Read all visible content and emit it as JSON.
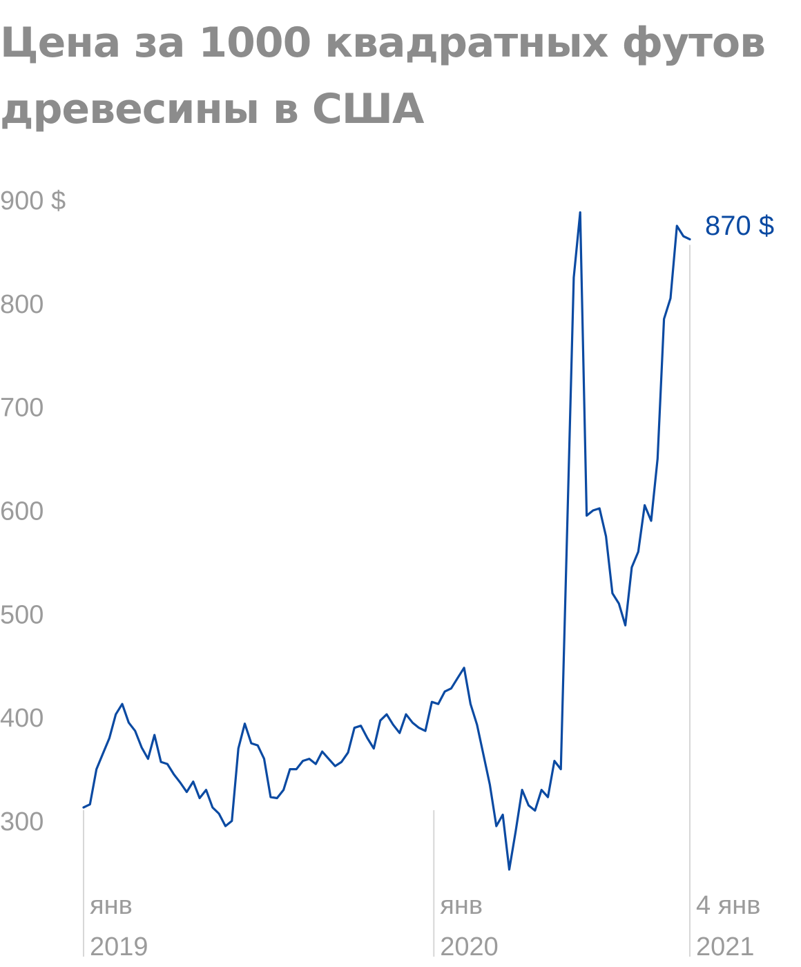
{
  "title_lines": [
    "Цена за 1000 квадратных футов",
    "древесины в США"
  ],
  "colors": {
    "title": "#8c8c8c",
    "axis_text": "#9b9b9b",
    "series": "#0b4aa2",
    "gridline": "#d7d7d7"
  },
  "chart_data": {
    "type": "line",
    "title": "Цена за 1000 квадратных футов древесины в США",
    "xlabel": "",
    "ylabel": "",
    "ylim": [
      250,
      900
    ],
    "y_ticks": [
      {
        "value": 900,
        "label": "900 $"
      },
      {
        "value": 800,
        "label": "800"
      },
      {
        "value": 700,
        "label": "700"
      },
      {
        "value": 600,
        "label": "600"
      },
      {
        "value": 500,
        "label": "500"
      },
      {
        "value": 400,
        "label": "400"
      },
      {
        "value": 300,
        "label": "300"
      }
    ],
    "x_ticks": [
      {
        "week": 0,
        "line1": "янв",
        "line2": "2019"
      },
      {
        "week": 52,
        "line1": "янв",
        "line2": "2020"
      },
      {
        "week": 90,
        "line1": "4 янв",
        "line2": "2021"
      }
    ],
    "end_label": "870 $",
    "grid": "vertical lines at x ticks",
    "series": [
      {
        "values": [
          318,
          321,
          355,
          370,
          385,
          408,
          418,
          400,
          392,
          376,
          365,
          388,
          362,
          360,
          350,
          342,
          333,
          343,
          327,
          335,
          318,
          312,
          300,
          305,
          375,
          399,
          380,
          378,
          365,
          328,
          327,
          335,
          355,
          355,
          363,
          365,
          360,
          372,
          365,
          358,
          362,
          371,
          395,
          397,
          385,
          375,
          402,
          408,
          398,
          390,
          408,
          400,
          395,
          392,
          420,
          418,
          430,
          433,
          443,
          453,
          418,
          398,
          369,
          340,
          300,
          311,
          258,
          295,
          335,
          320,
          315,
          335,
          328,
          363,
          355,
          590,
          830,
          893,
          600,
          605,
          607,
          580,
          525,
          515,
          494,
          550,
          565,
          610,
          595,
          655,
          790,
          810,
          880,
          870,
          867
        ]
      }
    ]
  }
}
